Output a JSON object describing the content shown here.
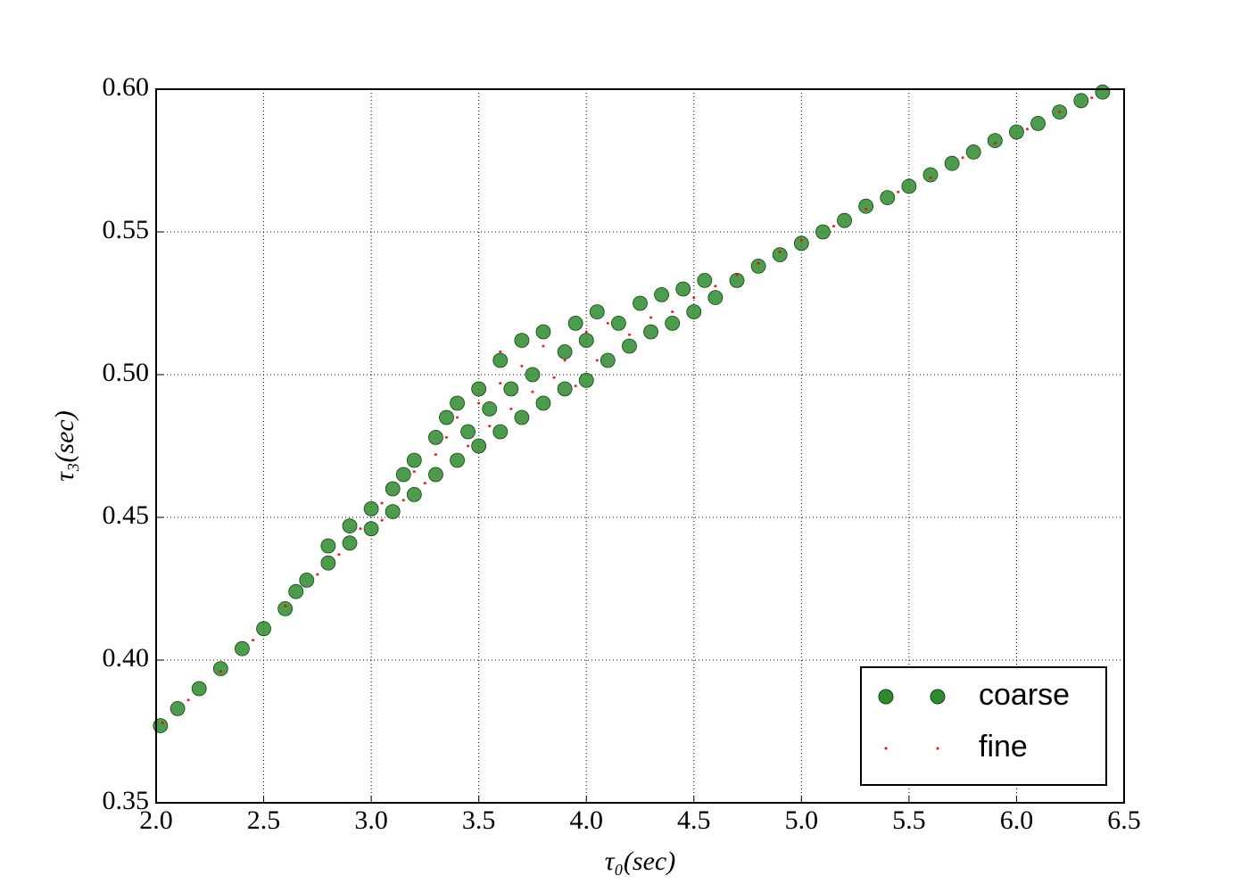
{
  "chart_data": {
    "type": "scatter",
    "x_label": "τ₀(sec)",
    "y_label": "τ₃(sec)",
    "xlim": [
      2.0,
      6.5
    ],
    "ylim": [
      0.35,
      0.6
    ],
    "xticks": [
      {
        "value": 2,
        "label": "2.0"
      },
      2.5,
      {
        "value": 3,
        "label": "3.0"
      },
      3.5,
      {
        "value": 4,
        "label": "4.0"
      },
      4.5,
      {
        "value": 5,
        "label": "5.0"
      },
      5.5,
      {
        "value": 6,
        "label": "6.0"
      },
      6.5
    ],
    "yticks": [
      0.35,
      {
        "value": 0.4,
        "label": "0.40"
      },
      0.45,
      {
        "value": 0.5,
        "label": "0.50"
      },
      0.55,
      {
        "value": 0.6,
        "label": "0.60"
      }
    ],
    "grid": true,
    "legend": "lower right",
    "series": [
      {
        "name": "coarse",
        "color": "#2e8b2e",
        "x": [
          2.02,
          2.1,
          2.2,
          2.3,
          2.4,
          2.5,
          2.6,
          2.65,
          2.7,
          2.8,
          2.8,
          2.9,
          2.9,
          3.0,
          3.0,
          3.1,
          3.1,
          3.15,
          3.2,
          3.2,
          3.3,
          3.3,
          3.35,
          3.4,
          3.4,
          3.45,
          3.5,
          3.5,
          3.55,
          3.6,
          3.6,
          3.65,
          3.7,
          3.7,
          3.75,
          3.8,
          3.8,
          3.9,
          3.9,
          3.95,
          4.0,
          4.0,
          4.05,
          4.1,
          4.15,
          4.2,
          4.25,
          4.3,
          4.35,
          4.4,
          4.45,
          4.5,
          4.55,
          4.6,
          4.7,
          4.8,
          4.9,
          5.0,
          5.1,
          5.2,
          5.3,
          5.4,
          5.5,
          5.6,
          5.7,
          5.8,
          5.9,
          6.0,
          6.1,
          6.2,
          6.3,
          6.4
        ],
        "values": [
          0.377,
          0.383,
          0.39,
          0.397,
          0.404,
          0.411,
          0.418,
          0.424,
          0.428,
          0.434,
          0.44,
          0.441,
          0.447,
          0.446,
          0.453,
          0.452,
          0.46,
          0.465,
          0.458,
          0.47,
          0.465,
          0.478,
          0.485,
          0.47,
          0.49,
          0.48,
          0.475,
          0.495,
          0.488,
          0.48,
          0.505,
          0.495,
          0.485,
          0.512,
          0.5,
          0.49,
          0.515,
          0.495,
          0.508,
          0.518,
          0.498,
          0.512,
          0.522,
          0.505,
          0.518,
          0.51,
          0.525,
          0.515,
          0.528,
          0.518,
          0.53,
          0.522,
          0.533,
          0.527,
          0.533,
          0.538,
          0.542,
          0.546,
          0.55,
          0.554,
          0.559,
          0.562,
          0.566,
          0.57,
          0.574,
          0.578,
          0.582,
          0.585,
          0.588,
          0.592,
          0.596,
          0.599
        ]
      },
      {
        "name": "fine",
        "color": "#ff0000",
        "x": [
          2.03,
          2.15,
          2.3,
          2.45,
          2.6,
          2.75,
          2.85,
          2.95,
          3.05,
          3.05,
          3.15,
          3.2,
          3.25,
          3.3,
          3.35,
          3.4,
          3.45,
          3.5,
          3.55,
          3.6,
          3.6,
          3.65,
          3.7,
          3.75,
          3.8,
          3.85,
          3.9,
          3.95,
          4.0,
          4.05,
          4.1,
          4.2,
          4.3,
          4.4,
          4.5,
          4.6,
          4.7,
          4.8,
          4.9,
          5.0,
          5.15,
          5.3,
          5.45,
          5.6,
          5.75,
          5.9,
          6.05,
          6.2,
          6.35,
          6.42
        ],
        "values": [
          0.378,
          0.386,
          0.396,
          0.407,
          0.419,
          0.43,
          0.437,
          0.446,
          0.449,
          0.455,
          0.456,
          0.466,
          0.462,
          0.472,
          0.478,
          0.485,
          0.475,
          0.49,
          0.482,
          0.497,
          0.508,
          0.488,
          0.503,
          0.494,
          0.51,
          0.499,
          0.505,
          0.496,
          0.515,
          0.505,
          0.518,
          0.514,
          0.52,
          0.522,
          0.527,
          0.531,
          0.535,
          0.539,
          0.543,
          0.547,
          0.552,
          0.558,
          0.564,
          0.569,
          0.576,
          0.581,
          0.586,
          0.592,
          0.597,
          0.6
        ]
      }
    ]
  }
}
